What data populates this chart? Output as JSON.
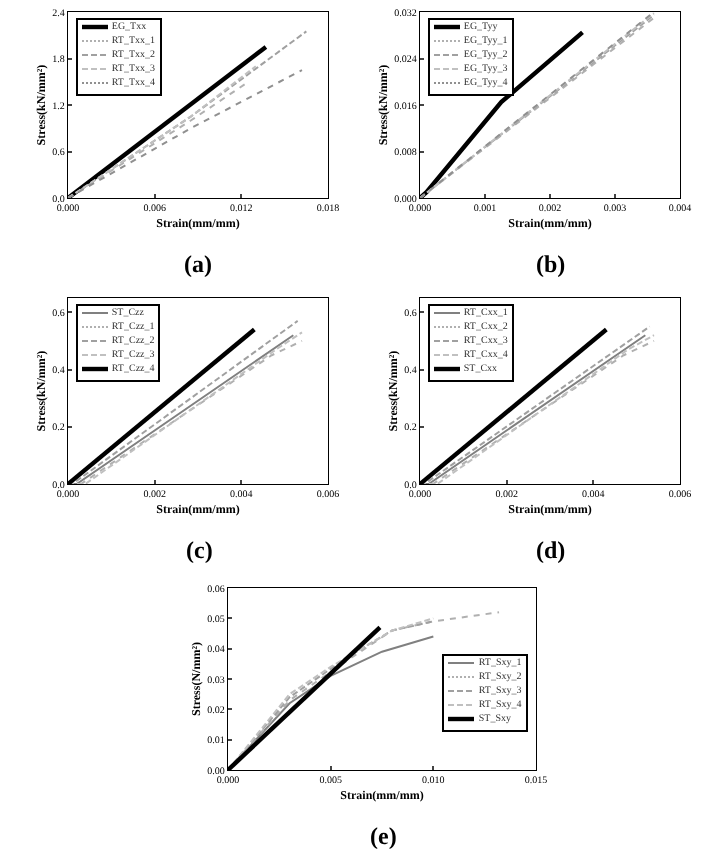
{
  "chart_data": [
    {
      "type": "line",
      "xlabel": "Strain(mm/mm)",
      "ylabel": "Stress(kN/mm²)",
      "annotations": [
        "(a)"
      ],
      "legend": "top left",
      "grid": false,
      "line_style": "solid",
      "xlim": [
        0,
        0.018
      ],
      "xticks": [
        {
          "value": 0,
          "label": "0.000"
        },
        {
          "value": 0.006,
          "label": "0.006"
        },
        {
          "value": 0.012,
          "label": "0.012"
        },
        {
          "value": 0.018,
          "label": "0.018"
        }
      ],
      "ylim": [
        0,
        2.4
      ],
      "yticks": [
        {
          "value": 0,
          "label": "0.0"
        },
        0.6,
        1.2,
        1.8,
        2.4
      ],
      "series": [
        {
          "name": "EG_Txx",
          "color": "#000000",
          "x": [
            0,
            0.0137
          ],
          "values": [
            0,
            1.95
          ]
        },
        {
          "name": "RT_Txx_1",
          "color": "#b0b0b0",
          "line_style": "dotted",
          "x": [
            0,
            0.0085,
            0.0125
          ],
          "values": [
            0,
            1.0,
            1.5
          ]
        },
        {
          "name": "RT_Txx_2",
          "color": "#a0a0a0",
          "line_style": "dashed",
          "x": [
            0,
            0.0085,
            0.0165
          ],
          "values": [
            0,
            1.05,
            2.15
          ]
        },
        {
          "name": "RT_Txx_3",
          "color": "#c0c0c0",
          "line_style": "dashed",
          "x": [
            0,
            0.0085,
            0.013
          ],
          "values": [
            0,
            1.05,
            1.7
          ]
        },
        {
          "name": "RT_Txx_4",
          "color": "#909090",
          "line_style": "dotted",
          "x": [
            0,
            0.0085,
            0.0162
          ],
          "values": [
            0,
            0.9,
            1.65
          ]
        }
      ]
    },
    {
      "type": "line",
      "xlabel": "Strain(mm/mm)",
      "ylabel": "Stress(kN/mm²)",
      "annotations": [
        "(b)"
      ],
      "legend": "top left",
      "grid": false,
      "line_style": "solid",
      "xlim": [
        0,
        0.004
      ],
      "xticks": [
        {
          "value": 0,
          "label": "0.000"
        },
        {
          "value": 0.001,
          "label": "0.001"
        },
        {
          "value": 0.002,
          "label": "0.002"
        },
        {
          "value": 0.003,
          "label": "0.003"
        },
        {
          "value": 0.004,
          "label": "0.004"
        }
      ],
      "ylim": [
        0,
        0.032
      ],
      "yticks": [
        {
          "value": 0,
          "label": "0.000"
        },
        {
          "value": 0.008,
          "label": "0.008"
        },
        0.016,
        0.024,
        0.032
      ],
      "series": [
        {
          "name": "EG_Tyy",
          "color": "#000000",
          "x": [
            0,
            0.0001,
            0.00125,
            0.0025
          ],
          "values": [
            0,
            0.001,
            0.0165,
            0.0285
          ]
        },
        {
          "name": "EG_Tyy_1",
          "color": "#b0b0b0",
          "line_style": "dotted",
          "x": [
            0,
            0.0036
          ],
          "values": [
            0,
            0.031
          ]
        },
        {
          "name": "EG_Tyy_2",
          "color": "#a0a0a0",
          "line_style": "dashed",
          "x": [
            0,
            0.0036
          ],
          "values": [
            0,
            0.0315
          ]
        },
        {
          "name": "EG_Tyy_3",
          "color": "#c0c0c0",
          "line_style": "dashed",
          "x": [
            0,
            0.0036
          ],
          "values": [
            0,
            0.0318
          ]
        },
        {
          "name": "EG_Tyy_4",
          "color": "#909090",
          "line_style": "dotted",
          "x": [
            0,
            0.0036
          ],
          "values": [
            0,
            0.032
          ]
        }
      ]
    },
    {
      "type": "line",
      "xlabel": "Strain(mm/mm)",
      "ylabel": "Stress(kN/mm²)",
      "annotations": [
        "(c)"
      ],
      "legend": "top left",
      "grid": false,
      "line_style": "solid",
      "xlim": [
        0,
        0.006
      ],
      "xticks": [
        {
          "value": 0,
          "label": "0.000"
        },
        {
          "value": 0.002,
          "label": "0.002"
        },
        {
          "value": 0.004,
          "label": "0.004"
        },
        {
          "value": 0.006,
          "label": "0.006"
        }
      ],
      "ylim": [
        0,
        0.65
      ],
      "yticks": [
        {
          "value": 0,
          "label": "0.0"
        },
        0.2,
        0.4,
        0.6
      ],
      "series": [
        {
          "name": "ST_Czz",
          "color": "#808080",
          "x": [
            0,
            0.0002,
            0.0052
          ],
          "values": [
            0,
            0,
            0.52
          ]
        },
        {
          "name": "RT_Czz_1",
          "color": "#b0b0b0",
          "line_style": "dotted",
          "x": [
            0,
            0.0003,
            0.0047,
            0.0054
          ],
          "values": [
            0,
            0,
            0.45,
            0.5
          ]
        },
        {
          "name": "RT_Czz_2",
          "color": "#a0a0a0",
          "line_style": "dashed",
          "x": [
            0,
            0.0001,
            0.0053
          ],
          "values": [
            0,
            0,
            0.57
          ]
        },
        {
          "name": "RT_Czz_3",
          "color": "#c0c0c0",
          "line_style": "dashed",
          "x": [
            0,
            0.0004,
            0.0048,
            0.0054
          ],
          "values": [
            0,
            0,
            0.47,
            0.53
          ]
        },
        {
          "name": "RT_Czz_4",
          "color": "#000000",
          "x": [
            0,
            0.0043
          ],
          "values": [
            0,
            0.54
          ]
        }
      ]
    },
    {
      "type": "line",
      "xlabel": "Strain(mm/mm)",
      "ylabel": "Stress(kN/mm²)",
      "annotations": [
        "(d)"
      ],
      "legend": "top left",
      "grid": false,
      "line_style": "solid",
      "xlim": [
        0,
        0.006
      ],
      "xticks": [
        {
          "value": 0,
          "label": "0.000"
        },
        {
          "value": 0.002,
          "label": "0.002"
        },
        {
          "value": 0.004,
          "label": "0.004"
        },
        {
          "value": 0.006,
          "label": "0.006"
        }
      ],
      "ylim": [
        0,
        0.65
      ],
      "yticks": [
        {
          "value": 0,
          "label": "0.0"
        },
        0.2,
        0.4,
        0.6
      ],
      "series": [
        {
          "name": "RT_Cxx_1",
          "color": "#808080",
          "x": [
            0,
            0.0002,
            0.0052
          ],
          "values": [
            0,
            0,
            0.52
          ]
        },
        {
          "name": "RT_Cxx_2",
          "color": "#b0b0b0",
          "line_style": "dotted",
          "x": [
            0,
            0.0003,
            0.0047,
            0.0054
          ],
          "values": [
            0,
            0,
            0.45,
            0.5
          ]
        },
        {
          "name": "RT_Cxx_3",
          "color": "#a0a0a0",
          "line_style": "dashed",
          "x": [
            0,
            0.0001,
            0.0053
          ],
          "values": [
            0,
            0,
            0.55
          ]
        },
        {
          "name": "RT_Cxx_4",
          "color": "#c0c0c0",
          "line_style": "dashed",
          "x": [
            0,
            0.0004,
            0.0048,
            0.0054
          ],
          "values": [
            0,
            0,
            0.47,
            0.52
          ]
        },
        {
          "name": "ST_Cxx",
          "color": "#000000",
          "x": [
            0,
            0.0043
          ],
          "values": [
            0,
            0.54
          ]
        }
      ]
    },
    {
      "type": "line",
      "xlabel": "Strain(mm/mm)",
      "ylabel": "Stress(N/mm²)",
      "annotations": [
        "(e)"
      ],
      "legend": "right",
      "grid": false,
      "line_style": "solid",
      "xlim": [
        0,
        0.015
      ],
      "xticks": [
        {
          "value": 0,
          "label": "0.000"
        },
        {
          "value": 0.005,
          "label": "0.005"
        },
        {
          "value": 0.01,
          "label": "0.010"
        },
        {
          "value": 0.015,
          "label": "0.015"
        }
      ],
      "ylim": [
        0,
        0.06
      ],
      "yticks": [
        {
          "value": 0,
          "label": "0.00"
        },
        {
          "value": 0.01,
          "label": "0.01"
        },
        {
          "value": 0.02,
          "label": "0.02"
        },
        {
          "value": 0.03,
          "label": "0.03"
        },
        {
          "value": 0.04,
          "label": "0.04"
        },
        {
          "value": 0.05,
          "label": "0.05"
        },
        {
          "value": 0.06,
          "label": "0.06"
        }
      ],
      "series": [
        {
          "name": "RT_Sxy_1",
          "color": "#808080",
          "x": [
            0,
            0.003,
            0.005,
            0.0075,
            0.01
          ],
          "values": [
            0,
            0.022,
            0.031,
            0.039,
            0.044
          ]
        },
        {
          "name": "RT_Sxy_2",
          "color": "#b0b0b0",
          "line_style": "dotted",
          "x": [
            0,
            0.003,
            0.006,
            0.008,
            0.01,
            0.0132
          ],
          "values": [
            0,
            0.023,
            0.037,
            0.046,
            0.049,
            0.052
          ]
        },
        {
          "name": "RT_Sxy_3",
          "color": "#a0a0a0",
          "line_style": "dashed",
          "x": [
            0,
            0.003,
            0.006,
            0.008,
            0.01
          ],
          "values": [
            0,
            0.024,
            0.038,
            0.046,
            0.049
          ]
        },
        {
          "name": "RT_Sxy_4",
          "color": "#c0c0c0",
          "line_style": "dashed",
          "x": [
            0,
            0.003,
            0.005,
            0.008,
            0.01
          ],
          "values": [
            0,
            0.025,
            0.034,
            0.046,
            0.05
          ]
        },
        {
          "name": "ST_Sxy",
          "color": "#000000",
          "x": [
            0,
            0.0074
          ],
          "values": [
            0,
            0.047
          ]
        }
      ]
    }
  ]
}
